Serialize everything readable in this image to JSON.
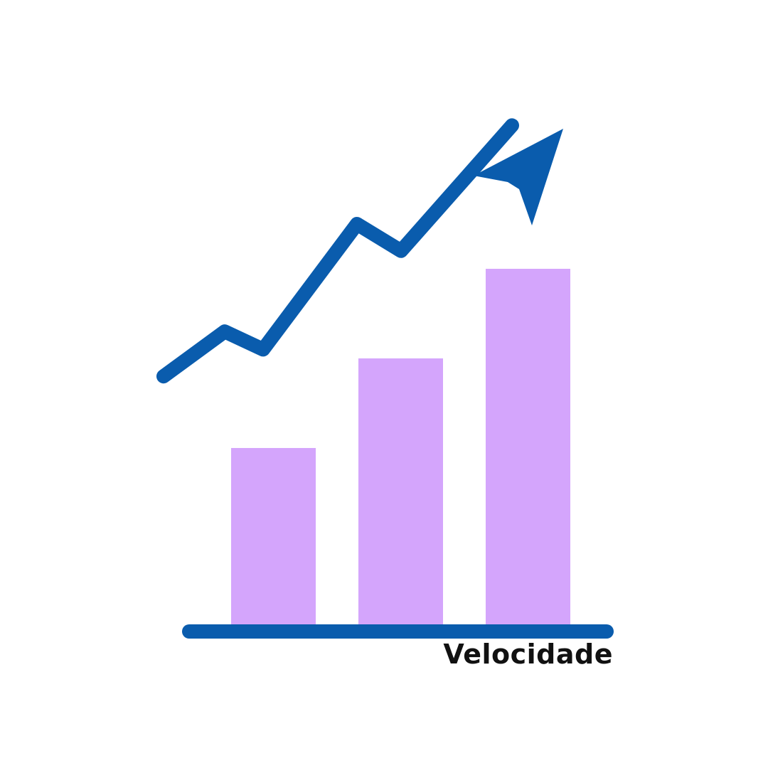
{
  "chart_data": {
    "type": "bar",
    "categories": [
      "",
      "",
      ""
    ],
    "values": [
      2,
      3,
      4
    ],
    "trend_line": [
      2.8,
      3.3,
      3.1,
      4.5,
      4.2,
      5.6
    ],
    "xlabel": "Velocidade",
    "ylabel": "",
    "title": "",
    "ylim": [
      0,
      6
    ],
    "grid": false,
    "legend": "none",
    "trend_arrow": true,
    "colors": {
      "bar": "#d4a5fc",
      "line": "#0a5cad",
      "axis": "#0a5cad",
      "label": "#111111"
    }
  }
}
